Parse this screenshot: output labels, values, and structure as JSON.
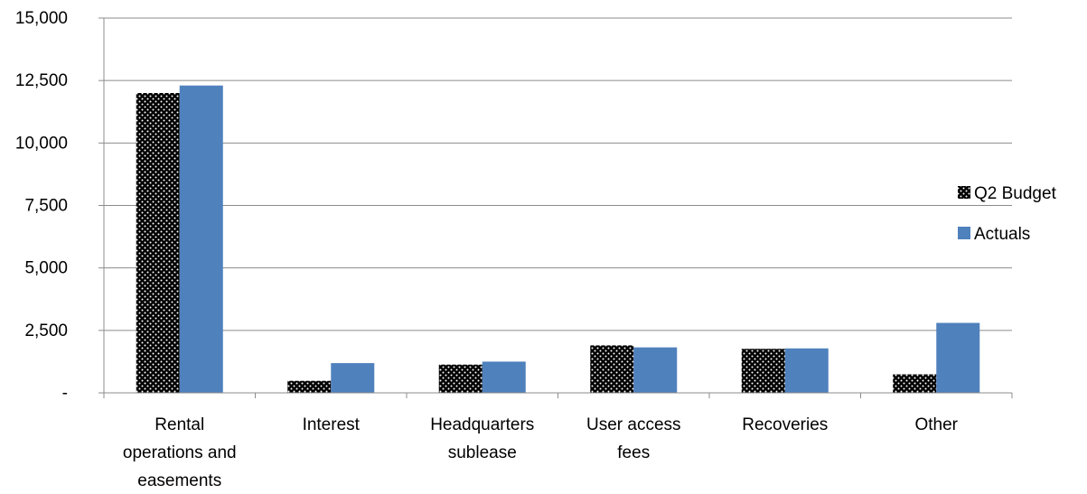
{
  "chart_data": {
    "type": "bar",
    "categories": [
      [
        "Rental",
        "operations and",
        "easements"
      ],
      [
        "Interest"
      ],
      [
        "Headquarters",
        "sublease"
      ],
      [
        "User access",
        "fees"
      ],
      [
        "Recoveries"
      ],
      [
        "Other"
      ]
    ],
    "series": [
      {
        "name": "Q2 Budget",
        "values": [
          12000,
          480,
          1130,
          1900,
          1760,
          740
        ],
        "pattern": "dotted-black"
      },
      {
        "name": "Actuals",
        "values": [
          12300,
          1190,
          1250,
          1820,
          1780,
          2800
        ],
        "color": "#4f81bd"
      }
    ],
    "ylim": [
      0,
      15000
    ],
    "yticks": [
      0,
      2500,
      5000,
      7500,
      10000,
      12500,
      15000
    ],
    "ytick_labels": [
      "-",
      "2,500",
      "5,000",
      "7,500",
      "10,000",
      "12,500",
      "15,000"
    ],
    "grid": true,
    "legend_position": "right",
    "title": "",
    "xlabel": "",
    "ylabel": ""
  }
}
